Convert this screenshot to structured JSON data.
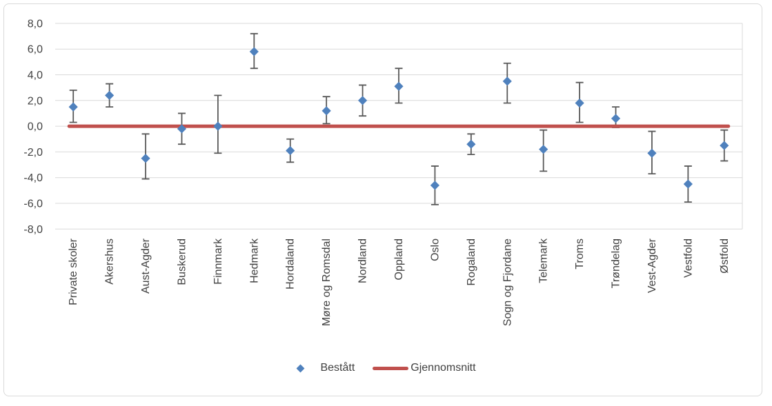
{
  "chart_data": {
    "type": "scatter",
    "title": "",
    "categories": [
      "Private skoler",
      "Akershus",
      "Aust-Agder",
      "Buskerud",
      "Finnmark",
      "Hedmark",
      "Hordaland",
      "Møre og Romsdal",
      "Nordland",
      "Oppland",
      "Oslo",
      "Rogaland",
      "Sogn og Fjordane",
      "Telemark",
      "Troms",
      "Trøndelag",
      "Vest-Agder",
      "Vestfold",
      "Østfold"
    ],
    "series": [
      {
        "name": "Bestått",
        "marker": "diamond",
        "values": [
          1.5,
          2.4,
          -2.5,
          -0.2,
          0.0,
          5.8,
          -1.9,
          1.2,
          2.0,
          3.1,
          -4.6,
          -1.4,
          3.5,
          -1.8,
          1.8,
          0.6,
          -2.1,
          -4.5,
          -1.5
        ],
        "error_high": [
          2.8,
          3.3,
          -0.6,
          1.0,
          2.4,
          7.2,
          -1.0,
          2.3,
          3.2,
          4.5,
          -3.1,
          -0.6,
          4.9,
          -0.3,
          3.4,
          1.5,
          -0.4,
          -3.1,
          -0.3
        ],
        "error_low": [
          0.3,
          1.5,
          -4.1,
          -1.4,
          -2.1,
          4.5,
          -2.8,
          0.2,
          0.8,
          1.8,
          -6.1,
          -2.2,
          1.8,
          -3.5,
          0.3,
          -0.1,
          -3.7,
          -5.9,
          -2.7
        ]
      },
      {
        "name": "Gjennomsnitt",
        "marker": "line",
        "value": 0.0
      }
    ],
    "ylim": [
      -8,
      8
    ],
    "ytick_step": 2,
    "ytick_labels": [
      "8,0",
      "6,0",
      "4,0",
      "2,0",
      "0,0",
      "-2,0",
      "-4,0",
      "-6,0",
      "-8,0"
    ],
    "decimal_separator": ",",
    "grid": true,
    "legend_position": "bottom",
    "x_label_rotation": 90
  },
  "colors": {
    "marker_blue": "#4F81BD",
    "average_red": "#C0504D",
    "error_bar": "#595959",
    "gridline": "#D9D9D9",
    "axis_text": "#404040",
    "frame_border": "#D9D9D9",
    "background": "#FFFFFF"
  },
  "legend": {
    "items": [
      {
        "label": "Bestått",
        "marker": "diamond"
      },
      {
        "label": "Gjennomsnitt",
        "marker": "line"
      }
    ]
  }
}
